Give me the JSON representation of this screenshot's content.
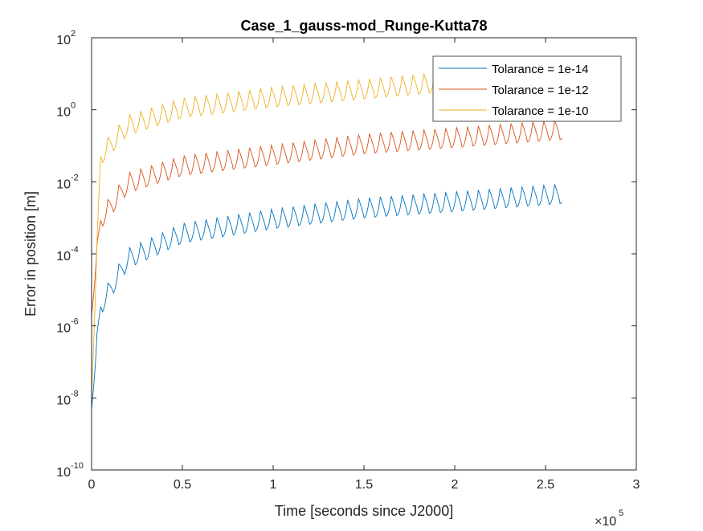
{
  "chart_data": {
    "type": "line",
    "title": "Case_1_gauss-mod_Runge-Kutta78",
    "xlabel": "Time [seconds since J2000]",
    "ylabel": "Error in position [m]",
    "x_multiplier_base": "×10",
    "x_multiplier_exp": "5",
    "xlim": [
      0,
      3
    ],
    "ylim_exp": [
      -10,
      2
    ],
    "y_scale": "log",
    "x_ticks": [
      "0",
      "0.5",
      "1",
      "1.5",
      "2",
      "2.5",
      "3"
    ],
    "y_tick_base": "10",
    "y_tick_exps": [
      "-10",
      "-8",
      "-6",
      "-4",
      "-2",
      "0",
      "2"
    ],
    "grid": false,
    "legend_position": "top-right",
    "x_end": 2.59,
    "oscillation_period": 0.06,
    "series": [
      {
        "name": "Tolarance = 1e-14",
        "color": "#0072BD",
        "start_value": 5e-09,
        "checkpoints": [
          [
            0.0,
            5e-09
          ],
          [
            0.05,
            2e-06
          ],
          [
            0.2,
            4e-05
          ],
          [
            0.5,
            0.0002
          ],
          [
            1.0,
            0.0005
          ],
          [
            1.5,
            0.001
          ],
          [
            2.0,
            0.0015
          ],
          [
            2.59,
            0.0025
          ]
        ],
        "swing_decades": 0.55
      },
      {
        "name": "Tolarance = 1e-12",
        "color": "#D95319",
        "start_value": 2e-06,
        "checkpoints": [
          [
            0.0,
            2e-06
          ],
          [
            0.05,
            0.0005
          ],
          [
            0.2,
            0.005
          ],
          [
            0.5,
            0.015
          ],
          [
            1.0,
            0.03
          ],
          [
            1.5,
            0.06
          ],
          [
            2.0,
            0.09
          ],
          [
            2.59,
            0.15
          ]
        ],
        "swing_decades": 0.55
      },
      {
        "name": "Tolarance = 1e-10",
        "color": "#EDB120",
        "start_value": 1e-08,
        "checkpoints": [
          [
            0.0,
            1e-08
          ],
          [
            0.05,
            0.03
          ],
          [
            0.2,
            0.2
          ],
          [
            0.5,
            0.6
          ],
          [
            1.0,
            1.2
          ],
          [
            1.5,
            2.0
          ],
          [
            1.9,
            3.0
          ]
        ],
        "swing_decades": 0.55
      }
    ]
  }
}
